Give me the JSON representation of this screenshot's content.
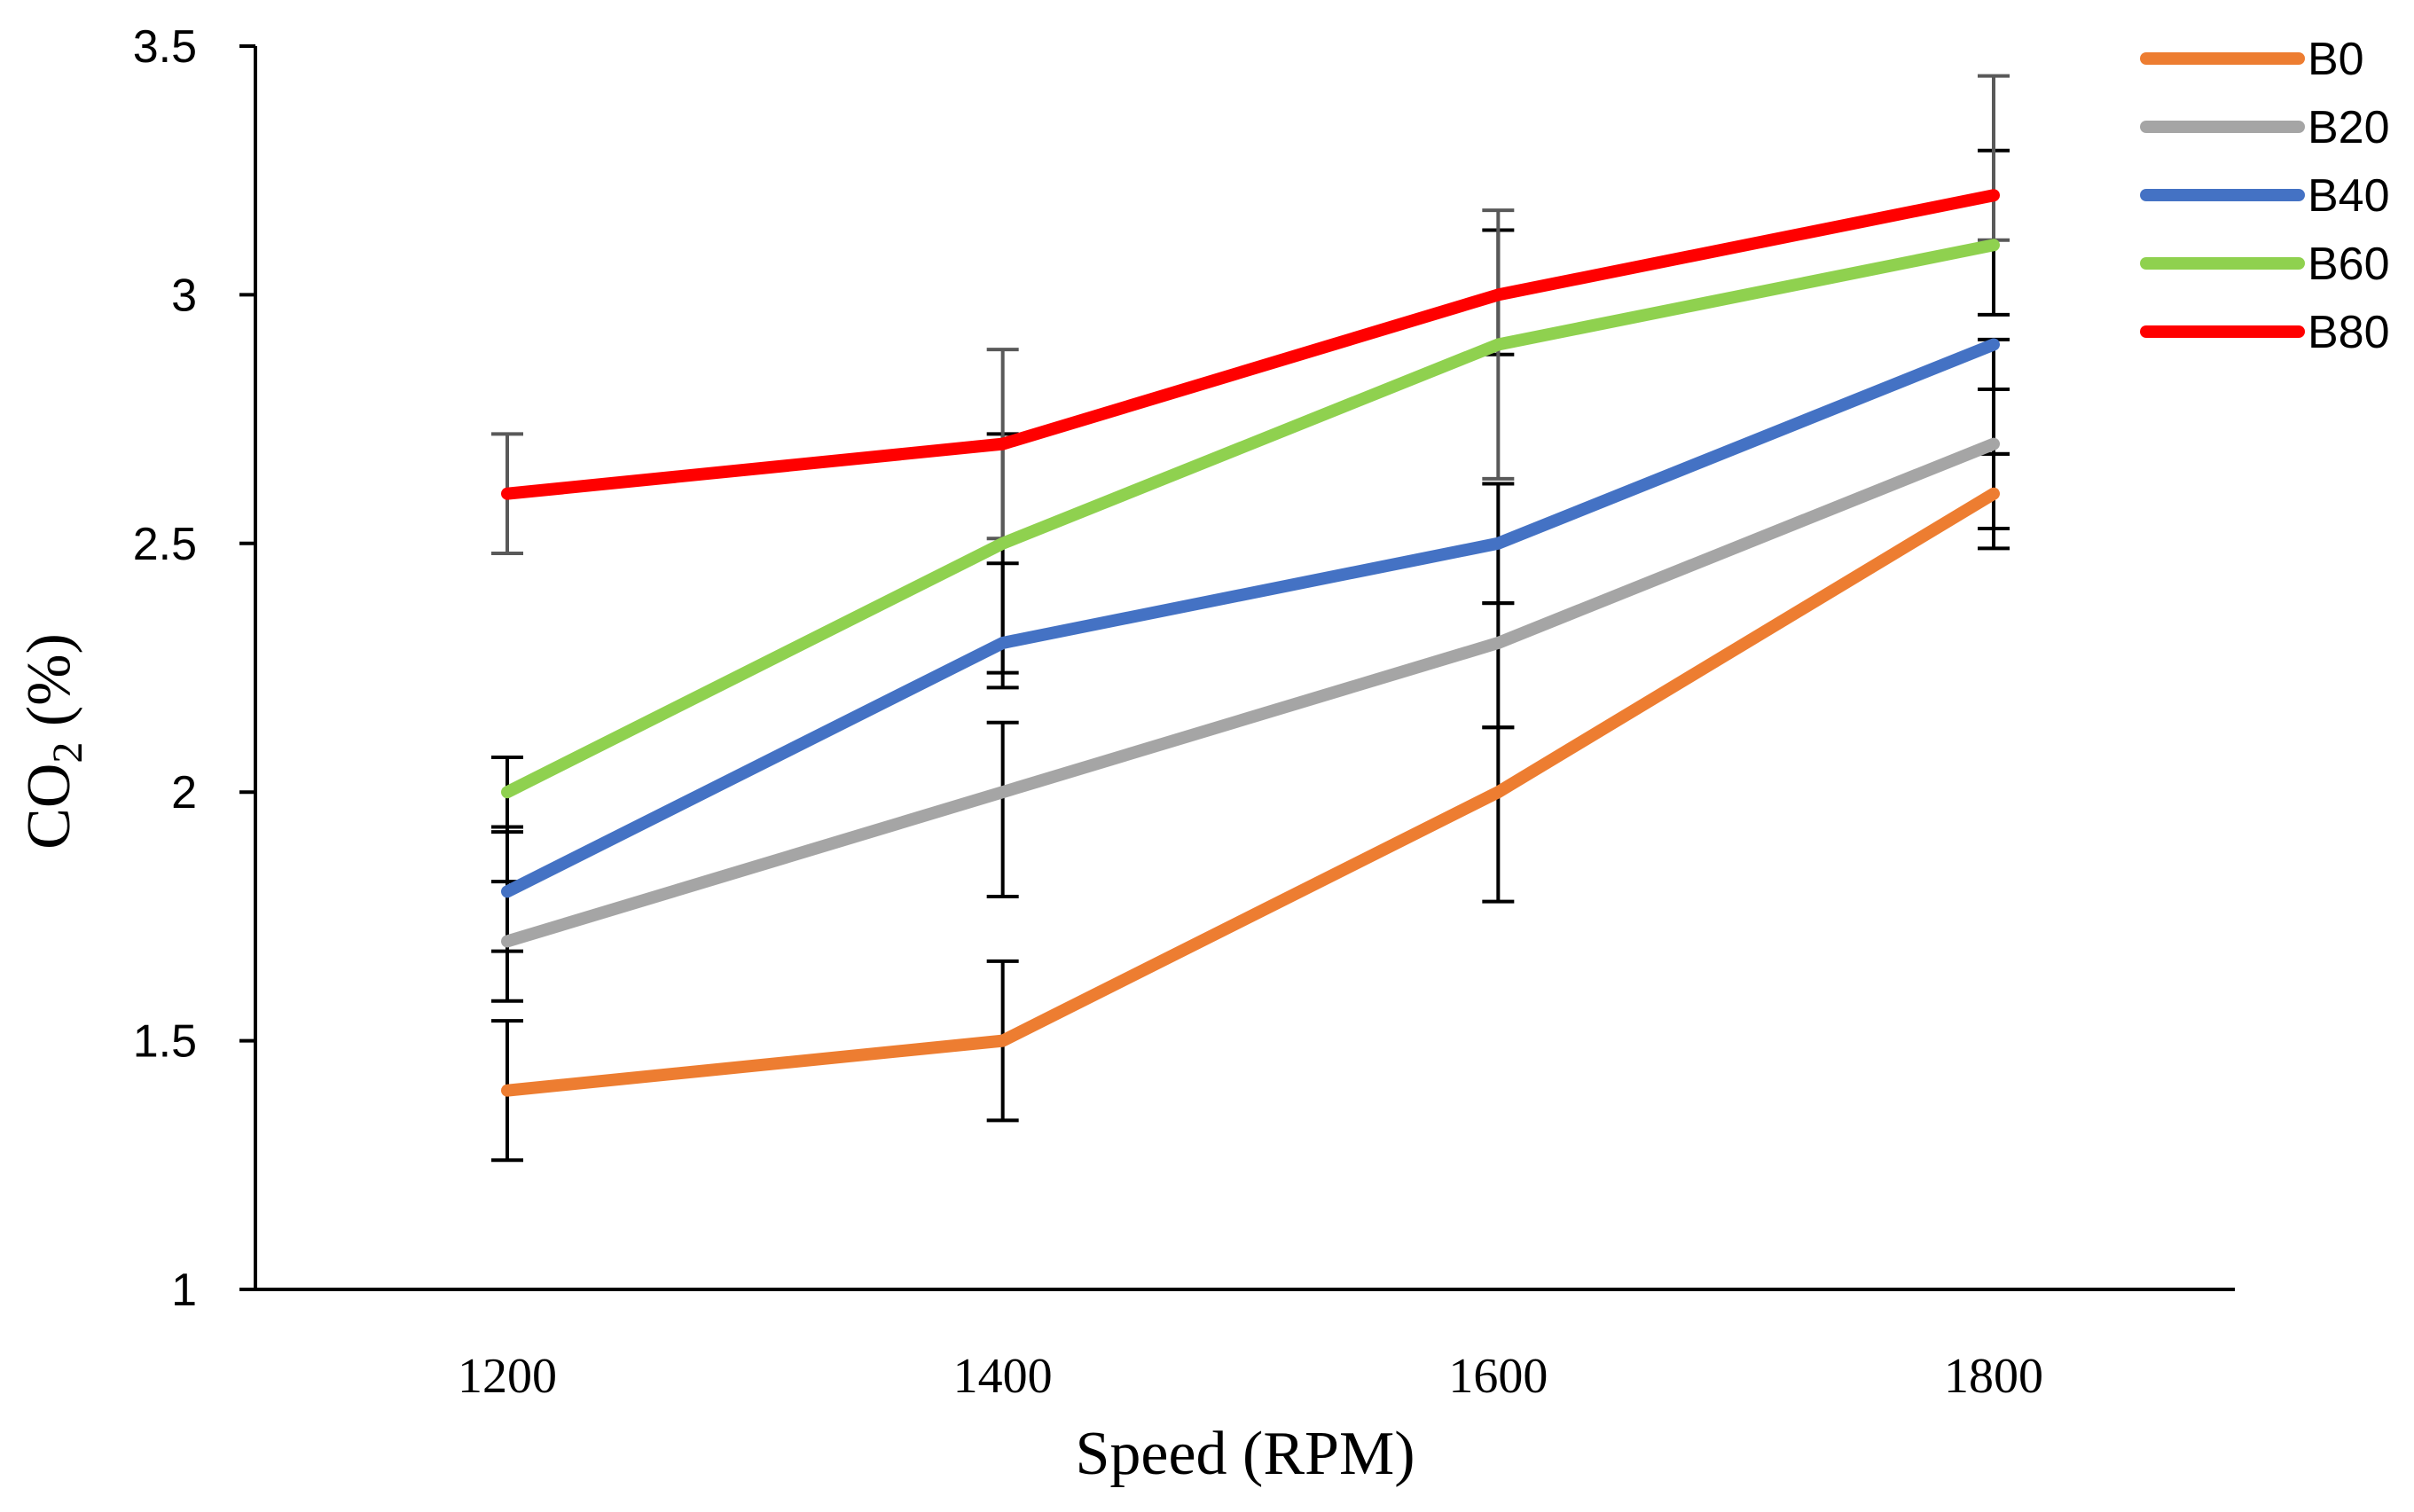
{
  "chart_data": {
    "type": "line",
    "title": "",
    "xlabel": "Speed (RPM)",
    "ylabel": {
      "main": "CO",
      "subscript": "2",
      "suffix": " (%)"
    },
    "x": [
      1200,
      1400,
      1600,
      1800
    ],
    "x_tick_labels": [
      "1200",
      "1400",
      "1600",
      "1800"
    ],
    "ylim": [
      1,
      3.5
    ],
    "y_ticks": [
      1,
      1.5,
      2,
      2.5,
      3,
      3.5
    ],
    "y_tick_labels": [
      "1",
      "1.5",
      "2",
      "2.5",
      "3",
      "3.5"
    ],
    "grid": false,
    "legend_position": "top-right",
    "series": [
      {
        "name": "B0",
        "color": "#ED7D31",
        "values": [
          1.4,
          1.5,
          2.0,
          2.6
        ],
        "error_bars": [
          {
            "low": 1.26,
            "high": 1.54
          },
          {
            "low": 1.34,
            "high": 1.66
          },
          {
            "low": 1.78,
            "high": 2.13
          },
          {
            "low": 2.49,
            "high": 2.68
          }
        ],
        "error_color": "#000000"
      },
      {
        "name": "B20",
        "color": "#A5A5A5",
        "values": [
          1.7,
          2.0,
          2.3,
          2.7
        ],
        "error_bars": [
          {
            "low": 1.58,
            "high": 1.82
          },
          {
            "low": 1.79,
            "high": 2.14
          },
          {
            "low": 2.13,
            "high": 2.38
          },
          {
            "low": 2.53,
            "high": 2.81
          }
        ],
        "error_color": "#000000"
      },
      {
        "name": "B40",
        "color": "#4472C4",
        "values": [
          1.8,
          2.3,
          2.5,
          2.9
        ],
        "error_bars": [
          {
            "low": 1.68,
            "high": 1.93
          },
          {
            "low": 2.21,
            "high": 2.46
          },
          {
            "low": 2.38,
            "high": 2.62
          },
          {
            "low": 2.68,
            "high": 2.91
          }
        ],
        "error_color": "#000000"
      },
      {
        "name": "B60",
        "color": "#8FD14F",
        "values": [
          2.0,
          2.5,
          2.9,
          3.1
        ],
        "error_bars": [
          {
            "low": 1.92,
            "high": 2.07
          },
          {
            "low": 2.24,
            "high": 2.72
          },
          {
            "low": 2.88,
            "high": 3.13
          },
          {
            "low": 2.96,
            "high": 3.29
          }
        ],
        "error_color": "#000000"
      },
      {
        "name": "B80",
        "color": "#FF0000",
        "values": [
          2.6,
          2.7,
          3.0,
          3.2
        ],
        "error_bars": [
          {
            "low": 2.48,
            "high": 2.72
          },
          {
            "low": 2.51,
            "high": 2.89
          },
          {
            "low": 2.63,
            "high": 3.17
          },
          {
            "low": 3.11,
            "high": 3.44
          }
        ],
        "error_color": "#595959"
      }
    ]
  }
}
